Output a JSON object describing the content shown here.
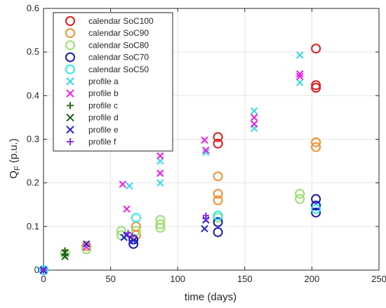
{
  "chart_data": {
    "type": "scatter",
    "title": "",
    "xlabel": "time (days)",
    "ylabel": {
      "main": "Q",
      "sub": "F",
      "suffix": " (p.u.)"
    },
    "xlim": [
      0,
      250
    ],
    "ylim": [
      0,
      0.6
    ],
    "xticks": [
      "0",
      "50",
      "100",
      "150",
      "200",
      "250"
    ],
    "yticks": [
      "0",
      "0.1",
      "0.2",
      "0.3",
      "0.4",
      "0.5",
      "0.6"
    ],
    "grid": true,
    "legend_position": "top-left",
    "series": [
      {
        "name": "calendar SoC100",
        "marker": "circle",
        "color": "#e41a1c",
        "points": [
          [
            0,
            0
          ],
          [
            130,
            0.305
          ],
          [
            130,
            0.29
          ],
          [
            203,
            0.508
          ],
          [
            203,
            0.424
          ],
          [
            203,
            0.418
          ]
        ]
      },
      {
        "name": "calendar SoC90",
        "marker": "circle",
        "color": "#f28e2b",
        "points": [
          [
            0,
            0
          ],
          [
            32,
            0.055
          ],
          [
            69,
            0.08
          ],
          [
            69,
            0.1
          ],
          [
            130,
            0.215
          ],
          [
            130,
            0.175
          ],
          [
            130,
            0.16
          ],
          [
            203,
            0.293
          ],
          [
            203,
            0.282
          ]
        ]
      },
      {
        "name": "calendar SoC80",
        "marker": "circle",
        "color": "#98df72",
        "points": [
          [
            0,
            0
          ],
          [
            16,
            0.038
          ],
          [
            32,
            0.048
          ],
          [
            58,
            0.09
          ],
          [
            58,
            0.08
          ],
          [
            69,
            0.09
          ],
          [
            87,
            0.115
          ],
          [
            87,
            0.105
          ],
          [
            87,
            0.097
          ],
          [
            130,
            0.12
          ],
          [
            191,
            0.175
          ],
          [
            191,
            0.163
          ]
        ]
      },
      {
        "name": "calendar SoC70",
        "marker": "circle",
        "color": "#1a1ab5",
        "points": [
          [
            0,
            0
          ],
          [
            67,
            0.06
          ],
          [
            67,
            0.07
          ],
          [
            130,
            0.11
          ],
          [
            130,
            0.087
          ],
          [
            203,
            0.163
          ],
          [
            203,
            0.148
          ],
          [
            203,
            0.132
          ]
        ]
      },
      {
        "name": "calendar SoC50",
        "marker": "circle",
        "color": "#2ee8f5",
        "points": [
          [
            0,
            0
          ],
          [
            69,
            0.12
          ],
          [
            130,
            0.125
          ],
          [
            203,
            0.14
          ]
        ]
      },
      {
        "name": "profile a",
        "marker": "x",
        "color": "#33d9ea",
        "points": [
          [
            0,
            0
          ],
          [
            64,
            0.193
          ],
          [
            87,
            0.25
          ],
          [
            87,
            0.2
          ],
          [
            121,
            0.27
          ],
          [
            157,
            0.365
          ],
          [
            157,
            0.325
          ],
          [
            191,
            0.493
          ],
          [
            191,
            0.43
          ]
        ]
      },
      {
        "name": "profile b",
        "marker": "x",
        "color": "#e91ee8",
        "points": [
          [
            0,
            0
          ],
          [
            32,
            0.053
          ],
          [
            59,
            0.197
          ],
          [
            62,
            0.14
          ],
          [
            87,
            0.262
          ],
          [
            87,
            0.222
          ],
          [
            120,
            0.298
          ],
          [
            121,
            0.275
          ],
          [
            157,
            0.35
          ],
          [
            157,
            0.335
          ],
          [
            191,
            0.45
          ],
          [
            191,
            0.444
          ]
        ]
      },
      {
        "name": "profile c",
        "marker": "plus",
        "color": "#2e6b1e",
        "points": [
          [
            0,
            0
          ],
          [
            16,
            0.045
          ],
          [
            16,
            0.036
          ]
        ]
      },
      {
        "name": "profile d",
        "marker": "x",
        "color": "#1b5e20",
        "points": [
          [
            0,
            0
          ],
          [
            16,
            0.04
          ],
          [
            16,
            0.031
          ]
        ]
      },
      {
        "name": "profile e",
        "marker": "x",
        "color": "#2222cc",
        "points": [
          [
            0,
            0
          ],
          [
            32,
            0.06
          ],
          [
            60,
            0.075
          ],
          [
            62,
            0.08
          ],
          [
            67,
            0.068
          ],
          [
            120,
            0.095
          ],
          [
            121,
            0.115
          ]
        ]
      },
      {
        "name": "profile f",
        "marker": "plus",
        "color": "#8a2be2",
        "points": [
          [
            0,
            0
          ],
          [
            63,
            0.085
          ],
          [
            66,
            0.078
          ],
          [
            121,
            0.125
          ],
          [
            121,
            0.118
          ]
        ]
      }
    ]
  }
}
